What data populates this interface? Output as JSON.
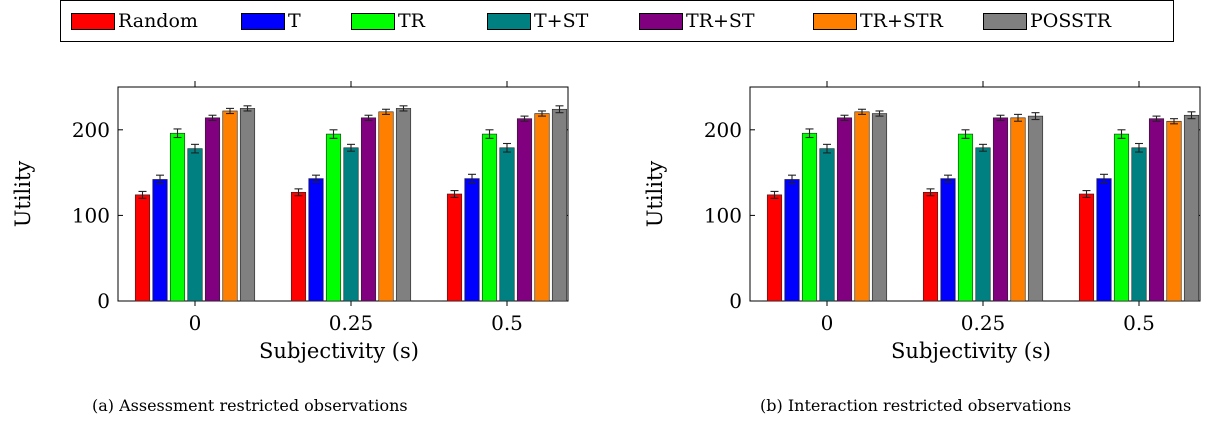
{
  "legend": [
    {
      "name": "Random",
      "color": "#ff0000"
    },
    {
      "name": "T",
      "color": "#0000ff"
    },
    {
      "name": "TR",
      "color": "#00ff00"
    },
    {
      "name": "T+ST",
      "color": "#008080"
    },
    {
      "name": "TR+ST",
      "color": "#800080"
    },
    {
      "name": "TR+STR",
      "color": "#ff8000"
    },
    {
      "name": "POSSTR",
      "color": "#808080"
    }
  ],
  "chart_data": [
    {
      "type": "bar",
      "caption": "(a) Assessment restricted observations",
      "xlabel": "Subjectivity (s)",
      "ylabel": "Utility",
      "categories": [
        "0",
        "0.25",
        "0.5"
      ],
      "ylim": [
        0,
        250
      ],
      "yticks": [
        0,
        100,
        200
      ],
      "grid": false,
      "series": [
        {
          "name": "Random",
          "color": "#ff0000",
          "values": [
            124,
            127,
            125
          ],
          "errors": [
            4,
            4,
            4
          ]
        },
        {
          "name": "T",
          "color": "#0000ff",
          "values": [
            142,
            143,
            143
          ],
          "errors": [
            5,
            4,
            5
          ]
        },
        {
          "name": "TR",
          "color": "#00ff00",
          "values": [
            196,
            195,
            195
          ],
          "errors": [
            5,
            5,
            5
          ]
        },
        {
          "name": "T+ST",
          "color": "#008080",
          "values": [
            178,
            179,
            179
          ],
          "errors": [
            5,
            4,
            5
          ]
        },
        {
          "name": "TR+ST",
          "color": "#800080",
          "values": [
            214,
            214,
            213
          ],
          "errors": [
            3,
            3,
            3
          ]
        },
        {
          "name": "TR+STR",
          "color": "#ff8000",
          "values": [
            222,
            221,
            219
          ],
          "errors": [
            3,
            3,
            3
          ]
        },
        {
          "name": "POSSTR",
          "color": "#808080",
          "values": [
            225,
            225,
            224
          ],
          "errors": [
            3,
            3,
            4
          ]
        }
      ]
    },
    {
      "type": "bar",
      "caption": "(b) Interaction restricted observations",
      "xlabel": "Subjectivity (s)",
      "ylabel": "Utility",
      "categories": [
        "0",
        "0.25",
        "0.5"
      ],
      "ylim": [
        0,
        250
      ],
      "yticks": [
        0,
        100,
        200
      ],
      "grid": false,
      "series": [
        {
          "name": "Random",
          "color": "#ff0000",
          "values": [
            124,
            127,
            125
          ],
          "errors": [
            4,
            4,
            4
          ]
        },
        {
          "name": "T",
          "color": "#0000ff",
          "values": [
            142,
            143,
            143
          ],
          "errors": [
            5,
            4,
            5
          ]
        },
        {
          "name": "TR",
          "color": "#00ff00",
          "values": [
            196,
            195,
            195
          ],
          "errors": [
            5,
            5,
            5
          ]
        },
        {
          "name": "T+ST",
          "color": "#008080",
          "values": [
            178,
            179,
            179
          ],
          "errors": [
            5,
            4,
            5
          ]
        },
        {
          "name": "TR+ST",
          "color": "#800080",
          "values": [
            214,
            214,
            213
          ],
          "errors": [
            3,
            3,
            3
          ]
        },
        {
          "name": "TR+STR",
          "color": "#ff8000",
          "values": [
            221,
            214,
            210
          ],
          "errors": [
            3,
            4,
            3
          ]
        },
        {
          "name": "POSSTR",
          "color": "#808080",
          "values": [
            219,
            216,
            217
          ],
          "errors": [
            3,
            4,
            4
          ]
        }
      ]
    }
  ]
}
